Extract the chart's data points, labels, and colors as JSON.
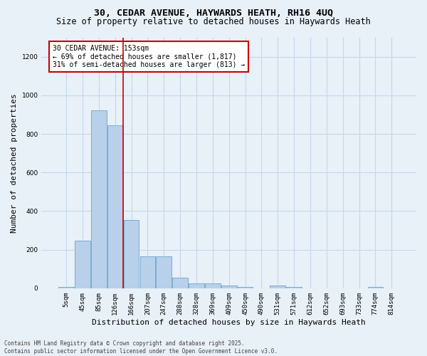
{
  "title_line1": "30, CEDAR AVENUE, HAYWARDS HEATH, RH16 4UQ",
  "title_line2": "Size of property relative to detached houses in Haywards Heath",
  "xlabel": "Distribution of detached houses by size in Haywards Heath",
  "ylabel": "Number of detached properties",
  "categories": [
    "5sqm",
    "45sqm",
    "85sqm",
    "126sqm",
    "166sqm",
    "207sqm",
    "247sqm",
    "288sqm",
    "328sqm",
    "369sqm",
    "409sqm",
    "450sqm",
    "490sqm",
    "531sqm",
    "571sqm",
    "612sqm",
    "652sqm",
    "693sqm",
    "733sqm",
    "774sqm",
    "814sqm"
  ],
  "values": [
    5,
    247,
    921,
    843,
    352,
    165,
    165,
    55,
    27,
    27,
    13,
    5,
    0,
    13,
    5,
    0,
    0,
    0,
    0,
    5,
    0
  ],
  "bar_color": "#b8d0ea",
  "bar_edge_color": "#7aaed0",
  "grid_color": "#c5d8ec",
  "background_color": "#e8f0f8",
  "vline_x_idx": 3,
  "vline_color": "#cc0000",
  "annotation_text": "30 CEDAR AVENUE: 153sqm\n← 69% of detached houses are smaller (1,817)\n31% of semi-detached houses are larger (813) →",
  "annotation_box_color": "white",
  "annotation_box_edge_color": "#cc0000",
  "ylim": [
    0,
    1300
  ],
  "yticks": [
    0,
    200,
    400,
    600,
    800,
    1000,
    1200
  ],
  "footnote": "Contains HM Land Registry data © Crown copyright and database right 2025.\nContains public sector information licensed under the Open Government Licence v3.0.",
  "title_fontsize": 9.5,
  "subtitle_fontsize": 8.5,
  "tick_fontsize": 6.5,
  "label_fontsize": 8,
  "annot_fontsize": 7,
  "footnote_fontsize": 5.5
}
